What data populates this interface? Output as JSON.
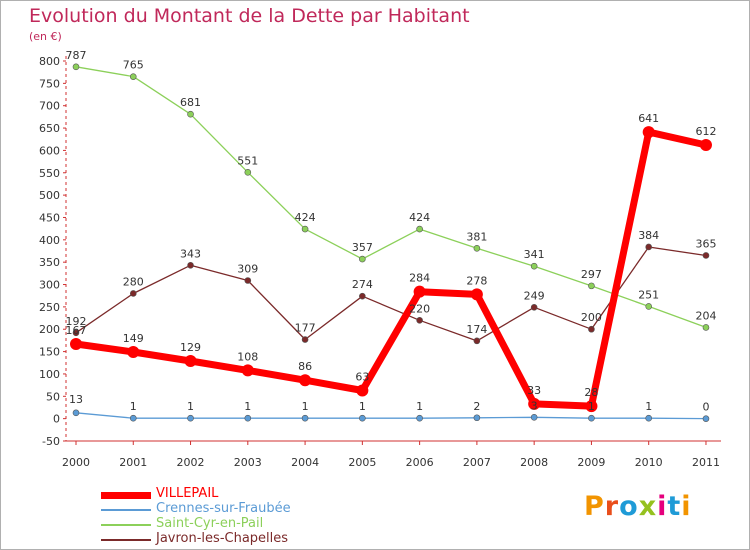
{
  "header": {
    "title": "Evolution du Montant de la Dette par Habitant",
    "unit": "(en €)"
  },
  "logo": {
    "text": "Proxiti",
    "colors": [
      "#f29400",
      "#e94e1b",
      "#1f9bd7",
      "#95c11f",
      "#e5007d",
      "#1f9bd7",
      "#f29400"
    ]
  },
  "chart_data": {
    "type": "line",
    "title": "Evolution du Montant de la Dette par Habitant",
    "subtitle": "(en €)",
    "xlabel": "",
    "ylabel": "",
    "x": [
      "2000",
      "2001",
      "2002",
      "2003",
      "2004",
      "2005",
      "2006",
      "2007",
      "2008",
      "2009",
      "2010",
      "2011"
    ],
    "ylim": [
      -50,
      800
    ],
    "yticks": [
      -50,
      0,
      50,
      100,
      150,
      200,
      250,
      300,
      350,
      400,
      450,
      500,
      550,
      600,
      650,
      700,
      750,
      800
    ],
    "grid": false,
    "legend_position": "bottom-left",
    "series": [
      {
        "name": "VILLEPAIL",
        "color": "#ff0000",
        "values": [
          167,
          149,
          129,
          108,
          86,
          63,
          284,
          278,
          33,
          28,
          641,
          612
        ]
      },
      {
        "name": "Crennes-sur-Fraubée",
        "color": "#5b9bd5",
        "values": [
          13,
          1,
          1,
          1,
          1,
          1,
          1,
          2,
          3,
          1,
          1,
          0
        ]
      },
      {
        "name": "Saint-Cyr-en-Pail",
        "color": "#8cd05a",
        "values": [
          787,
          765,
          681,
          551,
          424,
          357,
          424,
          381,
          341,
          297,
          251,
          204
        ]
      },
      {
        "name": "Javron-les-Chapelles",
        "color": "#7b2a2a",
        "values": [
          192,
          280,
          343,
          309,
          177,
          274,
          220,
          174,
          249,
          200,
          384,
          365
        ]
      }
    ]
  }
}
